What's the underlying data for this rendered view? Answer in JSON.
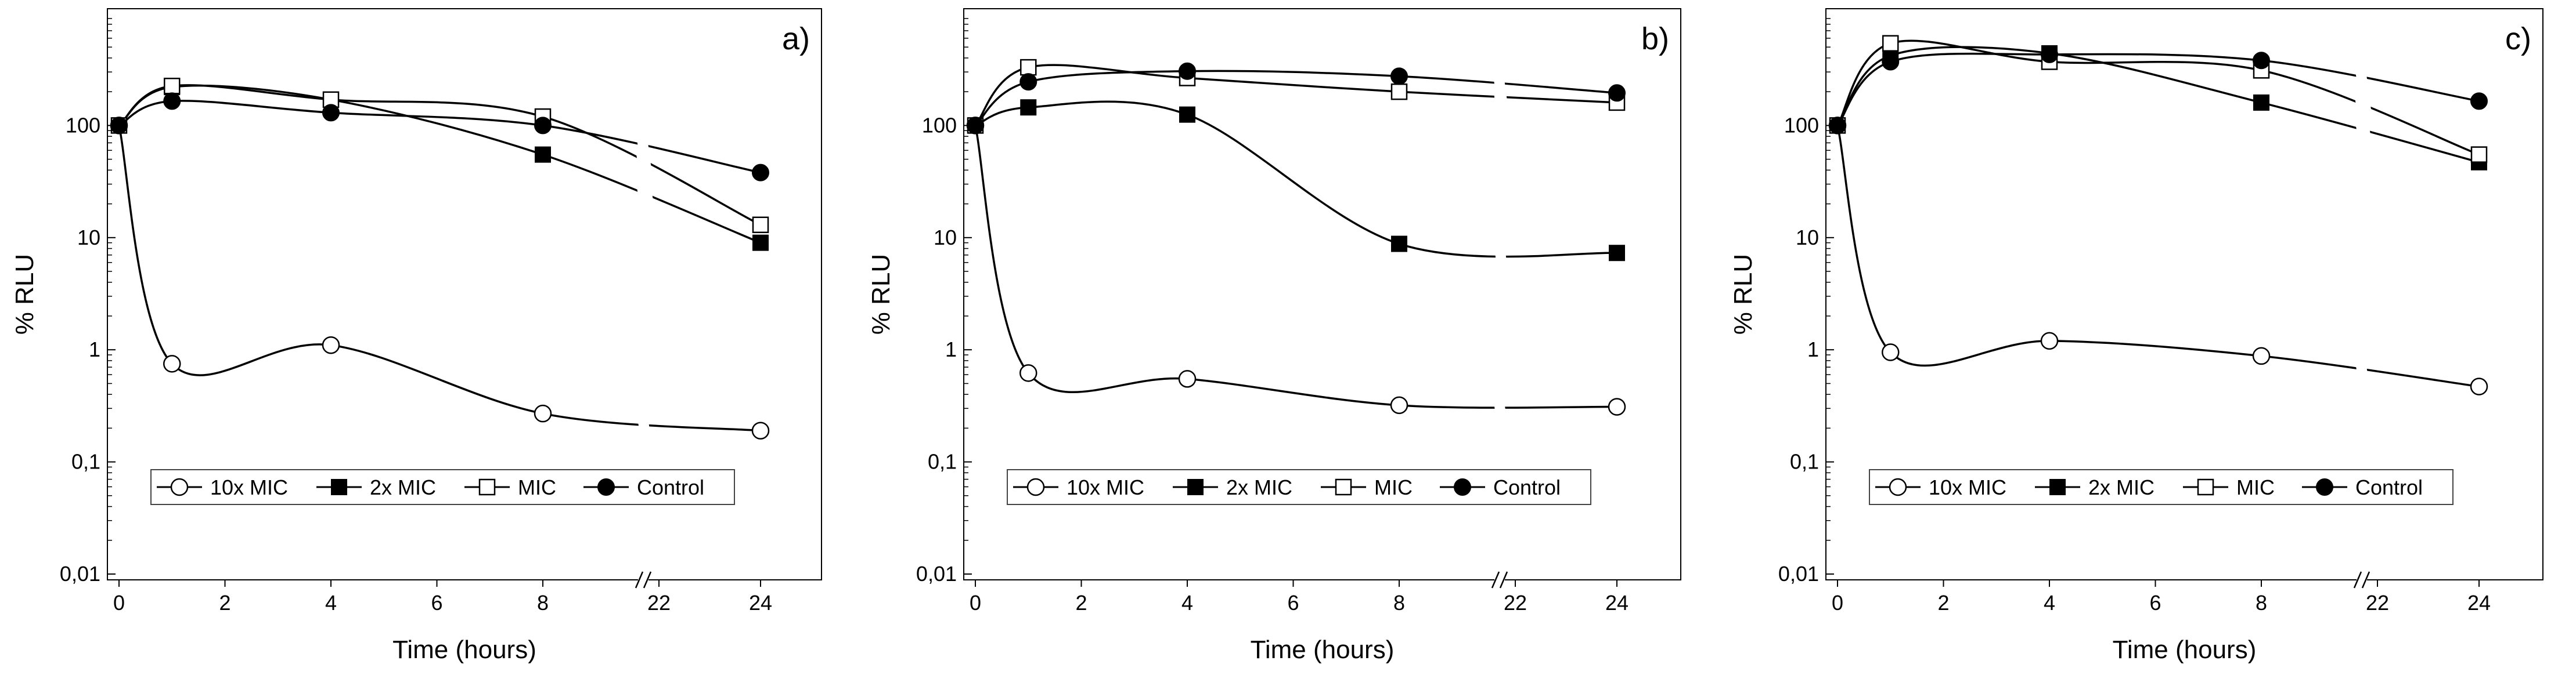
{
  "figure": {
    "colors": {
      "line": "#000000",
      "filled_marker": "#000000",
      "open_marker": "#ffffff"
    }
  },
  "chart_data": [
    {
      "type": "line",
      "panel_label": "a)",
      "xlabel": "Time (hours)",
      "ylabel": "% RLU",
      "yscale": "log",
      "ylim": [
        0.01,
        1000
      ],
      "ytick_labels": [
        "0,01",
        "0,1",
        "1",
        "10",
        "100"
      ],
      "ytick_values": [
        0.01,
        0.1,
        1,
        10,
        100
      ],
      "xtick_labels": [
        "0",
        "2",
        "4",
        "6",
        "8",
        "22",
        "24"
      ],
      "xtick_values": [
        0,
        2,
        4,
        6,
        8,
        22,
        24
      ],
      "axis_break_between": [
        8,
        22
      ],
      "x": [
        0,
        1,
        4,
        8,
        24
      ],
      "series": [
        {
          "name": "10x MIC",
          "marker": "open-circle",
          "values": [
            100,
            0.75,
            1.1,
            0.27,
            0.19
          ]
        },
        {
          "name": "2x MIC",
          "marker": "filled-square",
          "values": [
            100,
            220,
            170,
            55,
            9
          ]
        },
        {
          "name": "MIC",
          "marker": "open-square",
          "values": [
            100,
            225,
            170,
            120,
            13
          ]
        },
        {
          "name": "Control",
          "marker": "filled-circle",
          "values": [
            100,
            165,
            130,
            100,
            38
          ]
        }
      ],
      "legend_position": "bottom-center"
    },
    {
      "type": "line",
      "panel_label": "b)",
      "xlabel": "Time (hours)",
      "ylabel": "% RLU",
      "yscale": "log",
      "ylim": [
        0.01,
        1000
      ],
      "ytick_labels": [
        "0,01",
        "0,1",
        "1",
        "10",
        "100"
      ],
      "ytick_values": [
        0.01,
        0.1,
        1,
        10,
        100
      ],
      "xtick_labels": [
        "0",
        "2",
        "4",
        "6",
        "8",
        "22",
        "24"
      ],
      "xtick_values": [
        0,
        2,
        4,
        6,
        8,
        22,
        24
      ],
      "axis_break_between": [
        8,
        22
      ],
      "x": [
        0,
        1,
        4,
        8,
        24
      ],
      "series": [
        {
          "name": "10x MIC",
          "marker": "open-circle",
          "values": [
            100,
            0.62,
            0.55,
            0.32,
            0.31
          ]
        },
        {
          "name": "2x MIC",
          "marker": "filled-square",
          "values": [
            100,
            145,
            125,
            8.8,
            7.3
          ]
        },
        {
          "name": "MIC",
          "marker": "open-square",
          "values": [
            100,
            330,
            265,
            200,
            160
          ]
        },
        {
          "name": "Control",
          "marker": "filled-circle",
          "values": [
            100,
            245,
            305,
            275,
            195
          ]
        }
      ],
      "legend_position": "bottom-center"
    },
    {
      "type": "line",
      "panel_label": "c)",
      "xlabel": "Time (hours)",
      "ylabel": "% RLU",
      "yscale": "log",
      "ylim": [
        0.01,
        1000
      ],
      "ytick_labels": [
        "0,01",
        "0,1",
        "1",
        "10",
        "100"
      ],
      "ytick_values": [
        0.01,
        0.1,
        1,
        10,
        100
      ],
      "xtick_labels": [
        "0",
        "2",
        "4",
        "6",
        "8",
        "22",
        "24"
      ],
      "xtick_values": [
        0,
        2,
        4,
        6,
        8,
        22,
        24
      ],
      "axis_break_between": [
        8,
        22
      ],
      "x": [
        0,
        1,
        4,
        8,
        24
      ],
      "series": [
        {
          "name": "10x MIC",
          "marker": "open-circle",
          "values": [
            100,
            0.95,
            1.2,
            0.88,
            0.47
          ]
        },
        {
          "name": "2x MIC",
          "marker": "filled-square",
          "values": [
            100,
            420,
            440,
            160,
            47
          ]
        },
        {
          "name": "MIC",
          "marker": "open-square",
          "values": [
            100,
            540,
            370,
            310,
            55
          ]
        },
        {
          "name": "Control",
          "marker": "filled-circle",
          "values": [
            100,
            370,
            430,
            380,
            165
          ]
        }
      ],
      "legend_position": "bottom-center"
    }
  ]
}
